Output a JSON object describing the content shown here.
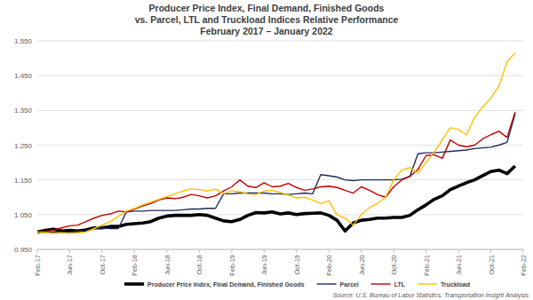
{
  "chart_data": {
    "type": "line",
    "title": [
      "Producer Price Index, Final Demand, Finished Goods",
      "vs. Parcel, LTL and Truckload Indices Relative Performance"
    ],
    "subtitle": "February 2017 – January 2022",
    "source": "Source: U.S. Bureau of Labor Statistics, Transportation Insight Analysis",
    "categories": [
      "Feb-17",
      null,
      null,
      null,
      "Jun-17",
      null,
      null,
      null,
      "Oct-17",
      null,
      null,
      null,
      "Feb-18",
      null,
      null,
      null,
      "Jun-18",
      null,
      null,
      null,
      "Oct-18",
      null,
      null,
      null,
      "Feb-19",
      null,
      null,
      null,
      "Jun-19",
      null,
      null,
      null,
      "Oct-19",
      null,
      null,
      null,
      "Feb-20",
      null,
      null,
      null,
      "Jun-20",
      null,
      null,
      null,
      "Oct-20",
      null,
      null,
      null,
      "Feb-21",
      null,
      null,
      null,
      "Jun-21",
      null,
      null,
      null,
      "Oct-21",
      null,
      null,
      null,
      "Feb-22"
    ],
    "series": [
      {
        "name": "Producer Price Index, Final Demand, Finished Goods",
        "color": "#000000",
        "line_style": "bold",
        "values": [
          1.0,
          1.005,
          1.008,
          1.003,
          1.005,
          1.003,
          1.006,
          1.012,
          1.012,
          1.016,
          1.016,
          1.022,
          1.024,
          1.026,
          1.03,
          1.04,
          1.046,
          1.048,
          1.048,
          1.048,
          1.05,
          1.048,
          1.04,
          1.032,
          1.03,
          1.036,
          1.048,
          1.056,
          1.055,
          1.058,
          1.052,
          1.055,
          1.05,
          1.053,
          1.054,
          1.055,
          1.048,
          1.034,
          1.003,
          1.026,
          1.034,
          1.036,
          1.04,
          1.04,
          1.042,
          1.042,
          1.048,
          1.064,
          1.078,
          1.094,
          1.104,
          1.122,
          1.132,
          1.142,
          1.15,
          1.162,
          1.174,
          1.178,
          1.168,
          1.19,
          null
        ]
      },
      {
        "name": "Parcel",
        "color": "#1f2a5c",
        "line_style": "solid",
        "values": [
          1.0,
          0.998,
          1.0,
          0.998,
          1.0,
          1.002,
          1.004,
          1.01,
          1.012,
          1.01,
          1.01,
          1.058,
          1.06,
          1.06,
          1.062,
          1.062,
          1.062,
          1.062,
          1.064,
          1.066,
          1.066,
          1.068,
          1.068,
          1.11,
          1.11,
          1.112,
          1.112,
          1.112,
          1.112,
          1.11,
          1.11,
          1.108,
          1.11,
          1.112,
          1.11,
          1.165,
          1.162,
          1.158,
          1.15,
          1.148,
          1.15,
          1.15,
          1.15,
          1.15,
          1.15,
          1.152,
          1.16,
          1.225,
          1.228,
          1.228,
          1.23,
          1.232,
          1.234,
          1.236,
          1.24,
          1.242,
          1.244,
          1.25,
          1.258,
          1.34,
          null
        ]
      },
      {
        "name": "LTL",
        "color": "#c00000",
        "line_style": "solid",
        "values": [
          1.0,
          1.002,
          1.006,
          1.012,
          1.018,
          1.02,
          1.03,
          1.04,
          1.048,
          1.052,
          1.06,
          1.058,
          1.066,
          1.075,
          1.082,
          1.092,
          1.098,
          1.096,
          1.1,
          1.108,
          1.104,
          1.098,
          1.104,
          1.118,
          1.13,
          1.15,
          1.132,
          1.128,
          1.142,
          1.13,
          1.132,
          1.14,
          1.128,
          1.12,
          1.124,
          1.13,
          1.132,
          1.128,
          1.12,
          1.112,
          1.13,
          1.12,
          1.108,
          1.1,
          1.13,
          1.15,
          1.16,
          1.18,
          1.22,
          1.222,
          1.212,
          1.265,
          1.25,
          1.245,
          1.25,
          1.268,
          1.28,
          1.29,
          1.272,
          1.345,
          null
        ]
      },
      {
        "name": "Truckload",
        "color": "#ffc000",
        "line_style": "solid",
        "values": [
          1.0,
          0.998,
          0.996,
          0.998,
          0.996,
          0.998,
          1.0,
          1.01,
          1.02,
          1.03,
          1.045,
          1.06,
          1.068,
          1.078,
          1.086,
          1.094,
          1.102,
          1.11,
          1.118,
          1.124,
          1.122,
          1.118,
          1.124,
          1.11,
          1.118,
          1.116,
          1.11,
          1.108,
          1.118,
          1.12,
          1.114,
          1.106,
          1.098,
          1.1,
          1.092,
          1.082,
          1.09,
          1.05,
          1.04,
          1.02,
          1.05,
          1.07,
          1.082,
          1.1,
          1.15,
          1.178,
          1.185,
          1.17,
          1.2,
          1.23,
          1.265,
          1.3,
          1.295,
          1.28,
          1.33,
          1.36,
          1.385,
          1.42,
          1.49,
          1.515,
          null
        ]
      }
    ],
    "ylim": [
      0.95,
      1.55
    ],
    "yticks": [
      {
        "value": 0.95,
        "label": "0.950"
      },
      {
        "value": 1.05,
        "label": "1.050"
      },
      {
        "value": 1.15,
        "label": "1.150"
      },
      {
        "value": 1.25,
        "label": "1.250"
      },
      {
        "value": 1.35,
        "label": "1.350"
      },
      {
        "value": 1.45,
        "label": "1.450"
      },
      {
        "value": 1.55,
        "label": "1.550"
      }
    ],
    "grid": true,
    "legend": "bottom"
  }
}
